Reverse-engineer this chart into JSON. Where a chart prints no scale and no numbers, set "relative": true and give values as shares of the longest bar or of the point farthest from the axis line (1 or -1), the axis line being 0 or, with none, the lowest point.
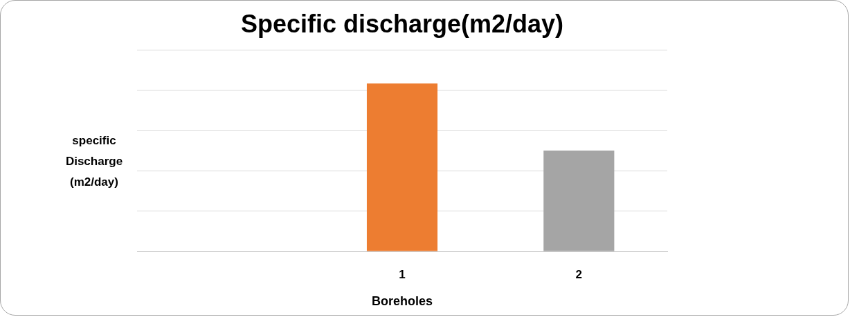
{
  "chart_data": {
    "type": "bar",
    "title": "Specific discharge(m2/day)",
    "xlabel": "Boreholes",
    "ylabel": "specific Discharge (m2/day)",
    "categories": [
      null,
      "1",
      "2"
    ],
    "values": [
      null,
      1,
      0.6
    ],
    "colors": [
      null,
      "#ed7d31",
      "#a5a5a5"
    ],
    "relative": true,
    "grid": "y",
    "legend": false
  }
}
